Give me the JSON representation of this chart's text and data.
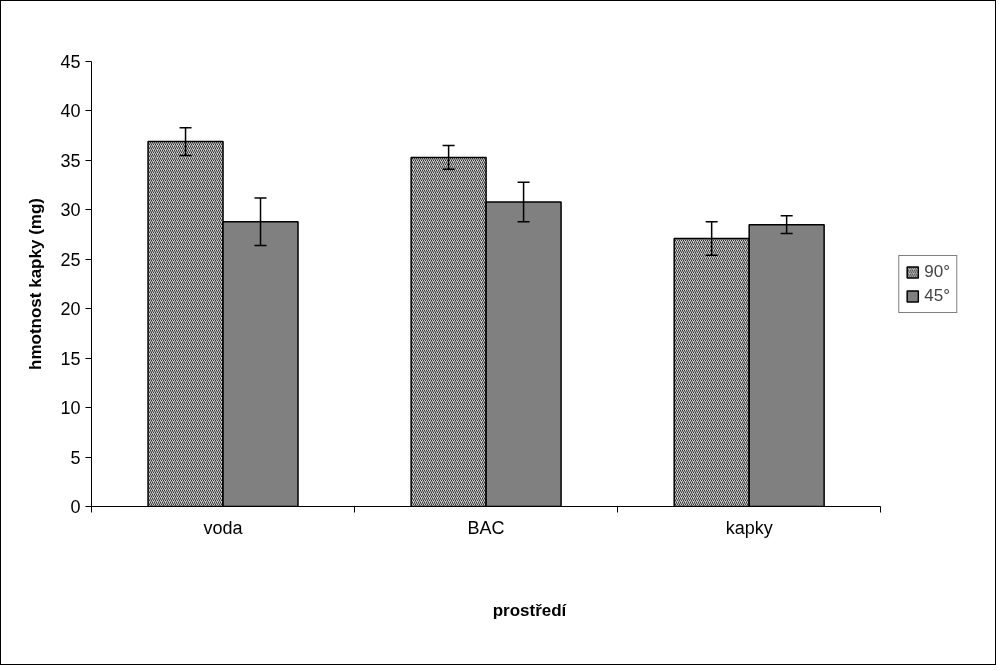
{
  "chart_data": {
    "type": "bar",
    "xlabel": "prostředí",
    "ylabel": "hmotnost kapky (mg)",
    "categories": [
      "voda",
      "BAC",
      "kapky"
    ],
    "series": [
      {
        "name": "90°",
        "color": "#d0d0d0",
        "values": [
          36.9,
          35.3,
          27.1
        ],
        "errors": [
          1.4,
          1.2,
          1.7
        ]
      },
      {
        "name": "45°",
        "color": "#808080",
        "values": [
          28.8,
          30.8,
          28.5
        ],
        "errors": [
          2.4,
          2.0,
          0.9
        ]
      }
    ],
    "ylim": [
      0,
      45
    ],
    "yticks": [
      0,
      5,
      10,
      15,
      20,
      25,
      30,
      35,
      40,
      45
    ],
    "grid": false,
    "legend": "right"
  }
}
